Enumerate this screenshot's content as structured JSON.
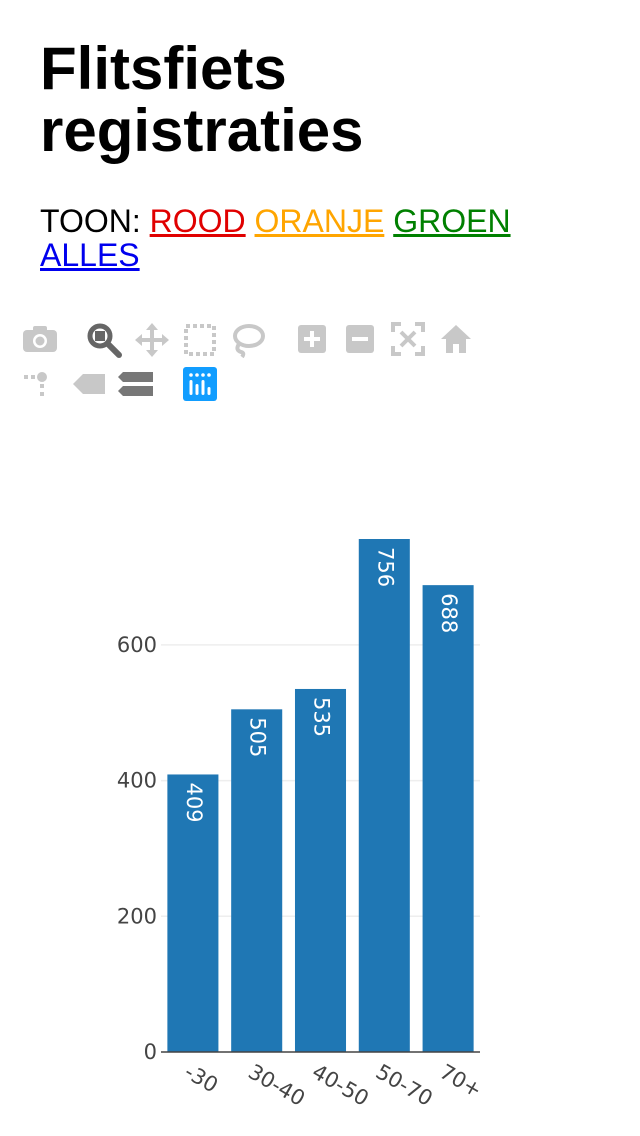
{
  "page": {
    "title": "Flitsfiets registraties",
    "filter_prefix": "TOON:",
    "filters": [
      {
        "label": "ROOD",
        "color": "#e00000"
      },
      {
        "label": "ORANJE",
        "color": "#ffa500"
      },
      {
        "label": "GROEN",
        "color": "#008000"
      },
      {
        "label": "ALLES",
        "color": "#0000ee"
      }
    ]
  },
  "toolbar": {
    "icons": [
      "camera-icon",
      "zoom-icon",
      "pan-icon",
      "box-select-icon",
      "lasso-select-icon",
      "zoom-in-icon",
      "zoom-out-icon",
      "autoscale-icon",
      "reset-axes-icon",
      "spike-lines-icon",
      "hover-closest-icon",
      "hover-compare-icon",
      "plotly-logo-icon"
    ],
    "active_icon": "zoom-icon",
    "logo_color": "#119dff"
  },
  "chart_data": {
    "type": "bar",
    "categories": [
      "-30",
      "30-40",
      "40-50",
      "50-70",
      "70+"
    ],
    "values": [
      409,
      505,
      535,
      756,
      688
    ],
    "title": "",
    "xlabel": "",
    "ylabel": "",
    "ylim": [
      0,
      756
    ],
    "yticks": [
      0,
      200,
      400,
      600
    ],
    "grid": true,
    "bar_color": "#1f77b4",
    "show_value_labels": true
  }
}
